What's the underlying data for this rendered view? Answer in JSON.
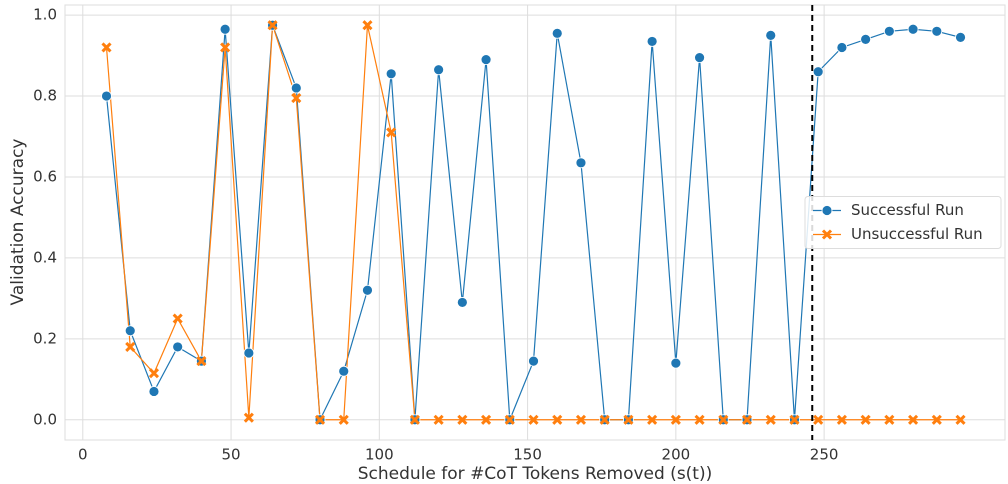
{
  "chart_data": {
    "type": "line",
    "xlabel": "Schedule for #CoT Tokens Removed (s(t))",
    "ylabel": "Validation Accuracy",
    "x": [
      8,
      16,
      24,
      32,
      40,
      48,
      56,
      64,
      72,
      80,
      88,
      96,
      104,
      112,
      120,
      128,
      136,
      144,
      152,
      160,
      168,
      176,
      184,
      192,
      200,
      208,
      216,
      224,
      232,
      240,
      248,
      256,
      264,
      272,
      280,
      288,
      296
    ],
    "series": [
      {
        "name": "Successful Run",
        "color": "#1f77b4",
        "marker": "circle",
        "values": [
          0.8,
          0.22,
          0.07,
          0.18,
          0.145,
          0.965,
          0.165,
          0.975,
          0.82,
          0.0,
          0.12,
          0.32,
          0.855,
          0.0,
          0.865,
          0.29,
          0.89,
          0.0,
          0.145,
          0.955,
          0.635,
          0.0,
          0.0,
          0.935,
          0.14,
          0.895,
          0.0,
          0.0,
          0.95,
          0.0,
          0.86,
          0.92,
          0.94,
          0.96,
          0.965,
          0.96,
          0.945
        ]
      },
      {
        "name": "Unsuccessful Run",
        "color": "#ff7f0e",
        "marker": "x",
        "values": [
          0.92,
          0.18,
          0.115,
          0.25,
          0.145,
          0.92,
          0.005,
          0.975,
          0.795,
          0.0,
          0.0,
          0.975,
          0.71,
          0.0,
          0.0,
          0.0,
          0.0,
          0.0,
          0.0,
          0.0,
          0.0,
          0.0,
          0.0,
          0.0,
          0.0,
          0.0,
          0.0,
          0.0,
          0.0,
          0.0,
          0.0,
          0.0,
          0.0,
          0.0,
          0.0,
          0.0,
          0.0
        ]
      }
    ],
    "vline": 246,
    "xlim": [
      -6,
      311
    ],
    "ylim": [
      -0.05,
      1.025
    ],
    "xticks": [
      0,
      50,
      100,
      150,
      200,
      250
    ],
    "yticks": [
      {
        "value": 0,
        "label": "0.0"
      },
      0.2,
      0.4,
      0.6,
      0.8,
      {
        "value": 1,
        "label": "1.0"
      }
    ],
    "grid": true,
    "legend": "center right"
  }
}
